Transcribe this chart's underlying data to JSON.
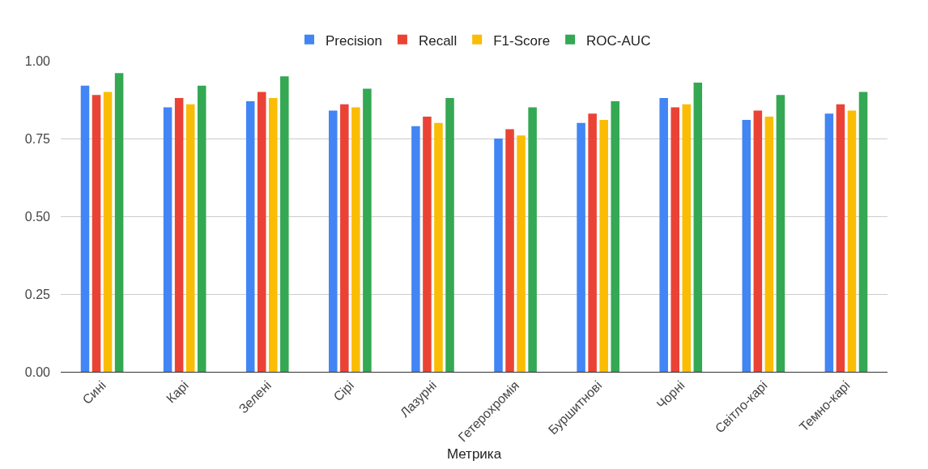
{
  "chart_data": {
    "type": "bar",
    "xlabel": "Метрика",
    "categories": [
      "Сині",
      "Карі",
      "Зелені",
      "Сірі",
      "Лазурні",
      "Гетерохромія",
      "Буршитнові",
      "Чорні",
      "Світло-карі",
      "Темно-карі"
    ],
    "series": [
      {
        "name": "Precision",
        "color": "#4285f4",
        "values": [
          0.92,
          0.85,
          0.87,
          0.84,
          0.79,
          0.75,
          0.8,
          0.88,
          0.81,
          0.83
        ]
      },
      {
        "name": "Recall",
        "color": "#ea4335",
        "values": [
          0.89,
          0.88,
          0.9,
          0.86,
          0.82,
          0.78,
          0.83,
          0.85,
          0.84,
          0.86
        ]
      },
      {
        "name": "F1-Score",
        "color": "#fbbc04",
        "values": [
          0.9,
          0.86,
          0.88,
          0.85,
          0.8,
          0.76,
          0.81,
          0.86,
          0.82,
          0.84
        ]
      },
      {
        "name": "ROC-AUC",
        "color": "#34a853",
        "values": [
          0.96,
          0.92,
          0.95,
          0.91,
          0.88,
          0.85,
          0.87,
          0.93,
          0.89,
          0.9
        ]
      }
    ],
    "ylim": [
      0,
      1
    ],
    "yticks": [
      {
        "value": 0,
        "label": "0.00"
      },
      {
        "value": 0.25,
        "label": "0.25"
      },
      {
        "value": 0.5,
        "label": "0.50"
      },
      {
        "value": 0.75,
        "label": "0.75"
      },
      {
        "value": 1,
        "label": "1.00"
      }
    ],
    "grid": "y",
    "legend": "top"
  }
}
